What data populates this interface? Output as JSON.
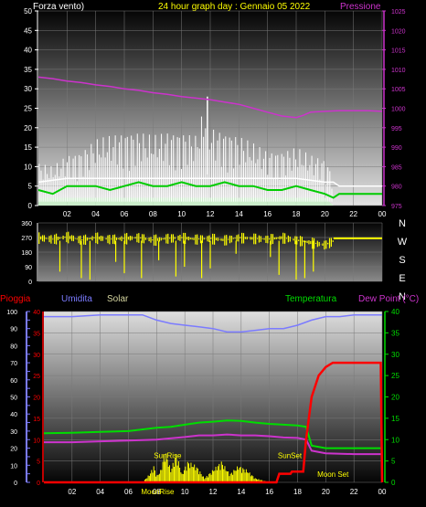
{
  "title": "24 hour graph day : Gennaio 05 2022",
  "colors": {
    "background": "#000000",
    "grid": "#7a7a7a",
    "title": "#ffff00",
    "wind_label": "#ffffff",
    "pressure": "#cc33cc",
    "rain": "#ff0000",
    "humidity": "#7b7bff",
    "solar": "#d6d6a0",
    "temperature": "#00dd00",
    "dewpoint": "#cc33cc",
    "wind_dir": "#ffff00",
    "sun_events": "#ffff00",
    "axis_text": "#ffffff"
  },
  "chart_data": [
    {
      "type": "line",
      "name_label": "Forza vento)",
      "right_label": "Pressione",
      "x_ticks": [
        "02",
        "04",
        "06",
        "08",
        "10",
        "12",
        "14",
        "16",
        "18",
        "20",
        "22",
        "00"
      ],
      "ylim_left": [
        0,
        50
      ],
      "yticks_left": [
        0,
        5,
        10,
        15,
        20,
        25,
        30,
        35,
        40,
        45,
        50
      ],
      "ylim_right": [
        975,
        1025
      ],
      "yticks_right": [
        975,
        980,
        985,
        990,
        995,
        1000,
        1005,
        1010,
        1015,
        1020,
        1025
      ],
      "pressure": {
        "x": [
          0,
          1,
          2,
          3,
          4,
          5,
          6,
          7,
          8,
          9,
          10,
          11,
          12,
          13,
          14,
          15,
          16,
          17,
          18,
          18.5,
          19,
          20,
          21,
          22,
          23,
          24
        ],
        "y": [
          1008,
          1007.6,
          1007,
          1006.6,
          1006,
          1005.6,
          1005,
          1004.6,
          1004,
          1003.6,
          1003,
          1002.6,
          1002.2,
          1001.6,
          1001,
          1000,
          999,
          998,
          997.6,
          998.2,
          999,
          999.2,
          999.4,
          999.4,
          999.4,
          999.2
        ]
      },
      "gust_max": {
        "x": [
          0,
          1,
          2,
          3,
          4,
          5,
          6,
          7,
          8,
          9,
          10,
          11,
          11.8,
          12,
          13,
          14,
          15,
          16,
          17,
          18,
          19,
          20,
          20.6,
          21,
          22,
          23,
          24
        ],
        "y": [
          11,
          10,
          13,
          14,
          17,
          18,
          19,
          19,
          18,
          19,
          19,
          18,
          28,
          20,
          19,
          18,
          16,
          14,
          14,
          15,
          13,
          12,
          8,
          5,
          5,
          5,
          5
        ]
      },
      "gust_median": {
        "x": [
          0,
          2,
          4,
          6,
          8,
          10,
          12,
          14,
          16,
          18,
          20,
          20.6,
          21,
          24
        ],
        "y": [
          6,
          7,
          7,
          7,
          7,
          7,
          7,
          7,
          7,
          7,
          6,
          6,
          5,
          5
        ]
      },
      "wind_avg": {
        "x": [
          0,
          1,
          2,
          3,
          4,
          5,
          6,
          7,
          8,
          9,
          10,
          11,
          12,
          13,
          14,
          15,
          16,
          17,
          18,
          19,
          20,
          20.6,
          21,
          24
        ],
        "y": [
          4,
          3,
          5,
          5,
          5,
          4,
          5,
          6,
          5,
          5,
          6,
          5,
          5,
          6,
          5,
          5,
          4,
          4,
          5,
          4,
          3,
          2,
          3,
          3
        ]
      },
      "wind_low_band": {
        "x": [
          0,
          4,
          8,
          12,
          16,
          20,
          20.6
        ],
        "y": [
          2,
          2,
          2,
          2,
          2,
          2,
          0
        ]
      }
    },
    {
      "type": "scatter",
      "right_letters": [
        "N",
        "W",
        "S",
        "E",
        "N"
      ],
      "ylim": [
        0,
        360
      ],
      "yticks": [
        0,
        90,
        180,
        270,
        360
      ],
      "tick_labels": [
        "0",
        "90",
        "180",
        "270",
        "360"
      ],
      "direction": {
        "x": [
          0,
          1,
          2,
          3,
          4,
          5,
          6,
          7,
          8,
          9,
          10,
          11,
          12,
          13,
          14,
          15,
          16,
          17,
          18,
          19,
          20,
          21,
          22,
          23,
          24
        ],
        "y": [
          270,
          260,
          275,
          255,
          270,
          260,
          265,
          270,
          255,
          265,
          270,
          260,
          265,
          255,
          270,
          265,
          260,
          270,
          255,
          240,
          225,
          265,
          265,
          265,
          265
        ]
      },
      "drops": {
        "x": [
          1.5,
          3,
          3.6,
          5.4,
          6,
          7.2,
          8.4,
          9.6,
          10.2,
          11.4,
          12,
          13.8,
          16.2,
          16.8,
          18,
          18.6,
          19.2
        ],
        "y": [
          60,
          20,
          10,
          120,
          50,
          20,
          130,
          30,
          90,
          20,
          80,
          170,
          150,
          40,
          10,
          20,
          60
        ]
      }
    },
    {
      "type": "line",
      "labels": [
        "Pioggia",
        "Umidita",
        "Solar",
        "Temperatura",
        "Dew Point (°C)"
      ],
      "x_ticks": [
        "02",
        "04",
        "06",
        "08",
        "10",
        "12",
        "14",
        "16",
        "18",
        "20",
        "22",
        "00"
      ],
      "ylim_left_humidity": [
        0,
        100
      ],
      "yticks_left_humidity": [
        0,
        5,
        10,
        15,
        20,
        25,
        30,
        35,
        40,
        45,
        50,
        55,
        60,
        65,
        70,
        75,
        80,
        85,
        90,
        95,
        100
      ],
      "ylim_rain": [
        0,
        40
      ],
      "yticks_rain": [
        0,
        5,
        10,
        15,
        20,
        25,
        30,
        35,
        40
      ],
      "ylim_temp": [
        0,
        40
      ],
      "yticks_temp": [
        0,
        5,
        10,
        15,
        20,
        25,
        30,
        35,
        40
      ],
      "humidity": {
        "x": [
          0,
          2,
          4,
          6,
          7,
          8,
          9,
          10,
          11,
          12,
          13,
          14,
          15,
          16,
          17,
          18,
          19,
          20,
          21,
          22,
          23,
          24
        ],
        "y": [
          97,
          97,
          98,
          98,
          98,
          95,
          93,
          92,
          91,
          90,
          88,
          88,
          89,
          90,
          90,
          92,
          95,
          97,
          97,
          98,
          98,
          98
        ]
      },
      "temperature": {
        "x": [
          0,
          2,
          4,
          6,
          8,
          9,
          10,
          11,
          12,
          13,
          14,
          15,
          16,
          17,
          18,
          18.6,
          19,
          20,
          21,
          22,
          23,
          24
        ],
        "y": [
          11.5,
          11.6,
          11.8,
          12,
          12.8,
          13,
          13.5,
          14,
          14.2,
          14.5,
          14.4,
          14,
          13.7,
          13.5,
          13.3,
          13,
          8.6,
          8,
          8,
          8,
          8,
          8
        ]
      },
      "dewpoint": {
        "x": [
          0,
          2,
          4,
          6,
          8,
          10,
          11,
          12,
          13,
          14,
          15,
          16,
          17,
          18,
          18.6,
          19,
          20,
          22,
          24
        ],
        "y": [
          9.4,
          9.4,
          9.6,
          9.8,
          10,
          10.6,
          11,
          11,
          11.2,
          11,
          11,
          10.8,
          10.5,
          10.4,
          10,
          7.4,
          6.8,
          6.6,
          6.6
        ]
      },
      "rain": {
        "x": [
          0,
          16.5,
          16.7,
          17.5,
          17.6,
          18.4,
          18.6,
          19,
          19.5,
          20,
          20.5,
          23.9,
          24
        ],
        "y": [
          0,
          0,
          2,
          2,
          2.5,
          2.5,
          10,
          20,
          25,
          27,
          28,
          28,
          0
        ]
      },
      "solar": {
        "x": [
          7,
          7.5,
          7.8,
          8,
          8.3,
          8.6,
          9,
          9.4,
          9.8,
          10.2,
          10.8,
          11.4,
          12,
          12.6,
          13.2,
          13.8,
          14.4,
          15,
          15.5,
          16
        ],
        "y": [
          0,
          2,
          4,
          1.5,
          3,
          8,
          3,
          7,
          2,
          5,
          4,
          1,
          3,
          5,
          2,
          4,
          3,
          1,
          0.5,
          0
        ]
      },
      "annotations": [
        {
          "text": "SunRise",
          "x": 7.8,
          "y": 5,
          "type": "sunrise"
        },
        {
          "text": "SunSet",
          "x": 16.6,
          "y": 5,
          "type": "sunset"
        },
        {
          "text": "MoonRise",
          "x": 6.9,
          "y": -5,
          "type": "moonrise"
        },
        {
          "text": "Moon Set",
          "x": 19.4,
          "y": 0.6,
          "type": "moonset"
        }
      ]
    }
  ]
}
